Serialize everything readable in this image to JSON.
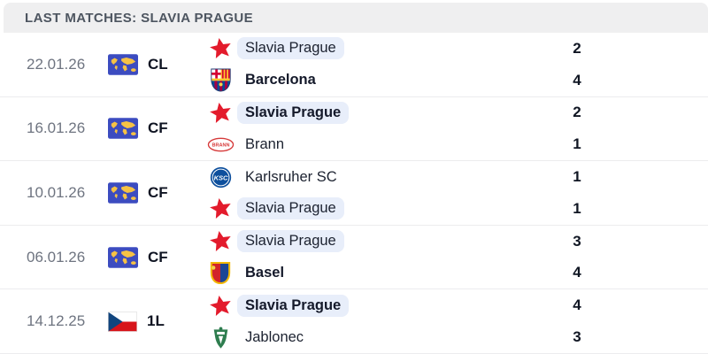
{
  "header": {
    "title": "LAST MATCHES: SLAVIA PRAGUE"
  },
  "colors": {
    "header_bg": "#efeff0",
    "highlight_pill": "#e8eefa",
    "slavia_red": "#e31b2c",
    "date_text": "#6e7480",
    "score_text": "#101623"
  },
  "matches": [
    {
      "date": "22.01.26",
      "competition": {
        "icon": "world-map-icon",
        "label": "CL"
      },
      "teams": [
        {
          "name": "Slavia Prague",
          "logo": "slavia-prague-logo",
          "score": "2",
          "bold": false,
          "highlighted": true
        },
        {
          "name": "Barcelona",
          "logo": "barcelona-logo",
          "score": "4",
          "bold": true,
          "highlighted": false
        }
      ]
    },
    {
      "date": "16.01.26",
      "competition": {
        "icon": "world-map-icon",
        "label": "CF"
      },
      "teams": [
        {
          "name": "Slavia Prague",
          "logo": "slavia-prague-logo",
          "score": "2",
          "bold": true,
          "highlighted": true
        },
        {
          "name": "Brann",
          "logo": "brann-logo",
          "score": "1",
          "bold": false,
          "highlighted": false
        }
      ]
    },
    {
      "date": "10.01.26",
      "competition": {
        "icon": "world-map-icon",
        "label": "CF"
      },
      "teams": [
        {
          "name": "Karlsruher SC",
          "logo": "karlsruher-sc-logo",
          "score": "1",
          "bold": false,
          "highlighted": false
        },
        {
          "name": "Slavia Prague",
          "logo": "slavia-prague-logo",
          "score": "1",
          "bold": false,
          "highlighted": true
        }
      ]
    },
    {
      "date": "06.01.26",
      "competition": {
        "icon": "world-map-icon",
        "label": "CF"
      },
      "teams": [
        {
          "name": "Slavia Prague",
          "logo": "slavia-prague-logo",
          "score": "3",
          "bold": false,
          "highlighted": true
        },
        {
          "name": "Basel",
          "logo": "basel-logo",
          "score": "4",
          "bold": true,
          "highlighted": false
        }
      ]
    },
    {
      "date": "14.12.25",
      "competition": {
        "icon": "czech-flag-icon",
        "label": "1L"
      },
      "teams": [
        {
          "name": "Slavia Prague",
          "logo": "slavia-prague-logo",
          "score": "4",
          "bold": true,
          "highlighted": true
        },
        {
          "name": "Jablonec",
          "logo": "jablonec-logo",
          "score": "3",
          "bold": false,
          "highlighted": false
        }
      ]
    }
  ]
}
